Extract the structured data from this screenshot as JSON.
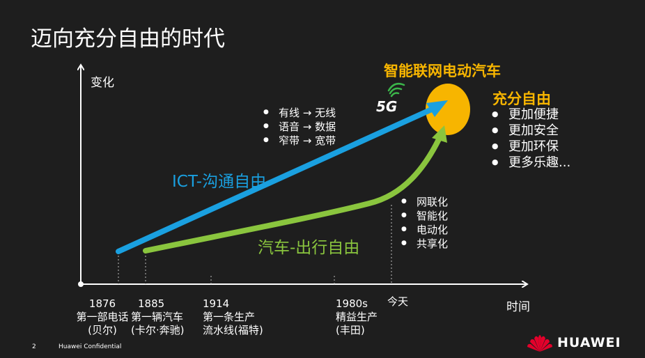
{
  "title": "迈向充分自由的时代",
  "y_axis_label": "变化",
  "x_axis_label": "时间",
  "ict": {
    "label": "ICT-沟通自由",
    "color": "#1aa0e0",
    "bullets": [
      "有线 → 无线",
      "语音 → 数据",
      "窄带 → 宽带"
    ]
  },
  "car": {
    "label": "汽车-出行自由",
    "color": "#8ac53e",
    "bullets": [
      "网联化",
      "智能化",
      "电动化",
      "共享化"
    ]
  },
  "badge_5g": "5G",
  "target": {
    "label": "智能联网电动汽车",
    "color": "#f7b500"
  },
  "freedom": {
    "title": "充分自由",
    "bullets": [
      "更加便捷",
      "更加安全",
      "更加环保",
      "更多乐趣..."
    ]
  },
  "timeline": [
    {
      "year": "1876",
      "event": "第一部电话",
      "who": "(贝尔)"
    },
    {
      "year": "1885",
      "event": "第一辆汽车",
      "who": "(卡尔·奔驰)"
    },
    {
      "year": "1914",
      "event": "第一条生产",
      "who": "流水线(福特)"
    },
    {
      "year": "1980s",
      "event": "精益生产",
      "who": "(丰田)"
    },
    {
      "year": "今天",
      "event": "",
      "who": ""
    }
  ],
  "footer": {
    "page": "2",
    "confidential": "Huawei Confidential",
    "brand": "HUAWEI"
  }
}
